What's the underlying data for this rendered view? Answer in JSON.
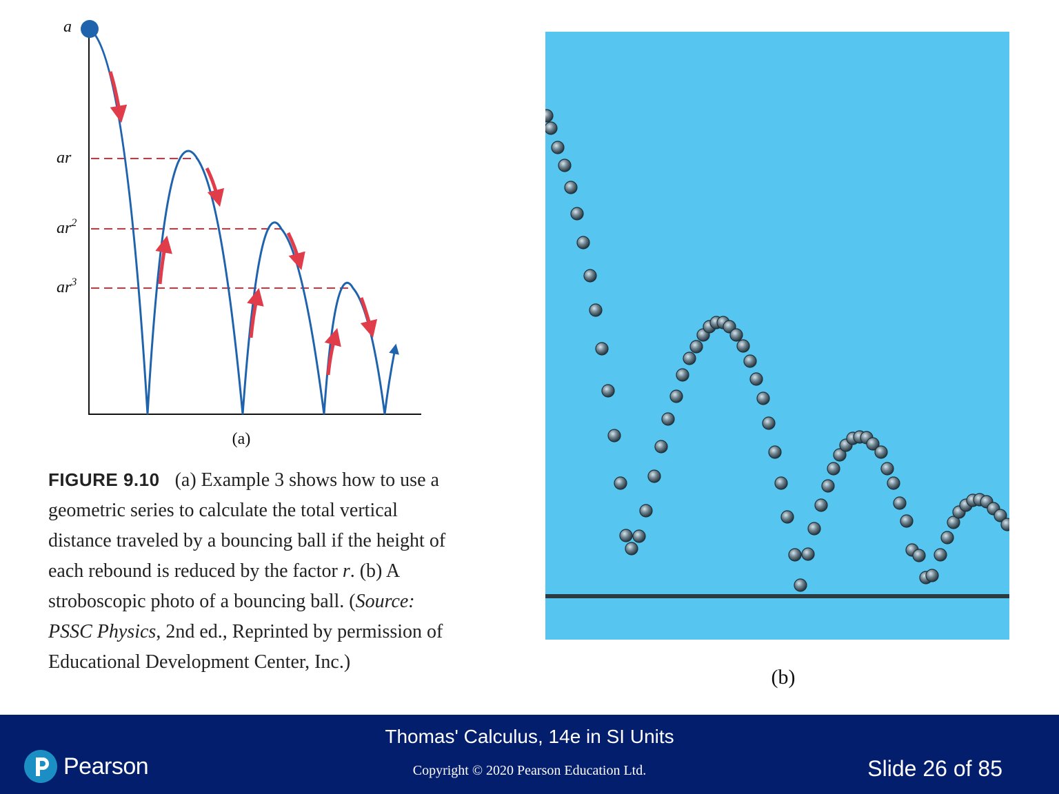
{
  "diagram_a": {
    "labels": {
      "a": "a",
      "ar": "ar",
      "ar2_base": "ar",
      "ar2_exp": "2",
      "ar3_base": "ar",
      "ar3_exp": "3"
    },
    "part_label": "(a)"
  },
  "caption": {
    "figure_label": "FIGURE 9.10",
    "text_1": "(a) Example 3 shows how to use a geometric series to calculate the total vertical distance traveled by a bouncing ball if the height of each rebound is reduced by the factor ",
    "r": "r",
    "text_2": ". (b) A stroboscopic photo of a bouncing ball. (",
    "source_italic": "Source: PSSC Physics",
    "text_3": ", 2nd ed., Reprinted by permission of Educational Development Center, Inc.)"
  },
  "photo_b": {
    "part_label": "(b)",
    "background_color": "#56c5ef"
  },
  "footer": {
    "title": "Thomas' Calculus, 14e in SI Units",
    "copyright": "Copyright © 2020 Pearson Education Ltd.",
    "slide_number": "Slide 26 of 85",
    "brand_name": "Pearson",
    "background_color": "#041e6e"
  },
  "colors": {
    "curve": "#1f63ad",
    "arrow": "#e03c4a",
    "dashed_line": "#d9303a"
  }
}
